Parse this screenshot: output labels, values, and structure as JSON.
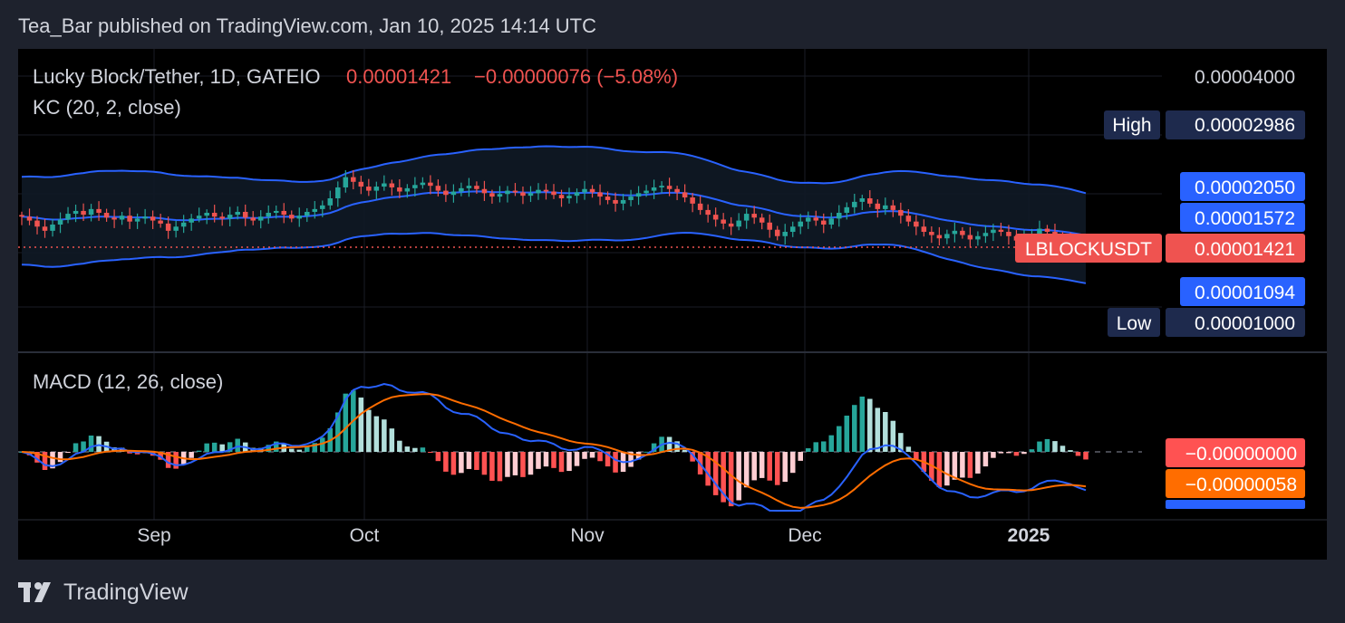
{
  "header": {
    "published": "Tea_Bar published on TradingView.com, Jan 10, 2025 14:14 UTC"
  },
  "footer": {
    "brand": "TradingView",
    "logo_icon": "tradingview-logo-icon"
  },
  "colors": {
    "background": "#000000",
    "frame": "#1e222d",
    "up": "#26a69a",
    "down": "#ef5350",
    "kc_band": "#2962ff",
    "macd_line": "#2962ff",
    "signal_line": "#ff6d00",
    "hist_up_strong": "#26a69a",
    "hist_up_weak": "#b2dfdb",
    "hist_down_strong": "#ff5252",
    "hist_down_weak": "#ffcdd2"
  },
  "price_pane": {
    "symbol_label": "Lucky Block/Tether, 1D, GATEIO",
    "last_price": "0.00001421",
    "change": "−0.00000076 (−5.08%)",
    "indicator_label": "KC (20, 2, close)",
    "axis_top_label": "0.00004000",
    "labels": {
      "high_tag": "High",
      "high_value": "0.00002986",
      "kc_upper": "0.00002050",
      "kc_basis": "0.00001572",
      "ticker_tag": "LBLOCKUSDT",
      "ticker_value": "0.00001421",
      "kc_lower": "0.00001094",
      "low_tag": "Low",
      "low_value": "0.00001000"
    }
  },
  "macd_pane": {
    "indicator_label": "MACD (12, 26, close)",
    "labels": {
      "histogram": "−0.00000000",
      "signal": "−0.00000058"
    }
  },
  "time_axis": {
    "labels": [
      "Sep",
      "Oct",
      "Nov",
      "Dec",
      "2025"
    ]
  },
  "chart_data": {
    "type": "candlestick",
    "title": "Lucky Block/Tether, 1D, GATEIO",
    "x_range": [
      "2024-08-15",
      "2025-01-10"
    ],
    "y_scale": "log",
    "y_axis_top": 4e-05,
    "last": 1.421e-05,
    "high": 2.986e-05,
    "low": 1e-05,
    "keltner": {
      "upper": 2.05e-05,
      "basis": 1.572e-05,
      "lower": 1.094e-05
    },
    "close_series": [
      1.72e-05,
      1.68e-05,
      1.62e-05,
      1.58e-05,
      1.64e-05,
      1.69e-05,
      1.75e-05,
      1.78e-05,
      1.74e-05,
      1.8e-05,
      1.76e-05,
      1.71e-05,
      1.69e-05,
      1.73e-05,
      1.67e-05,
      1.7e-05,
      1.72e-05,
      1.68e-05,
      1.65e-05,
      1.58e-05,
      1.62e-05,
      1.66e-05,
      1.7e-05,
      1.73e-05,
      1.76e-05,
      1.72e-05,
      1.7e-05,
      1.74e-05,
      1.77e-05,
      1.71e-05,
      1.68e-05,
      1.72e-05,
      1.76e-05,
      1.78e-05,
      1.74e-05,
      1.7e-05,
      1.73e-05,
      1.77e-05,
      1.8e-05,
      1.84e-05,
      1.92e-05,
      2.05e-05,
      2.18e-05,
      2.12e-05,
      2.06e-05,
      2.01e-05,
      2.06e-05,
      2.1e-05,
      2.05e-05,
      2e-05,
      2.04e-05,
      2.08e-05,
      2.11e-05,
      2.07e-05,
      2.01e-05,
      1.96e-05,
      2e-05,
      2.04e-05,
      2.07e-05,
      2.03e-05,
      1.98e-05,
      1.94e-05,
      1.97e-05,
      2.01e-05,
      1.99e-05,
      1.95e-05,
      1.98e-05,
      2.02e-05,
      2e-05,
      1.96e-05,
      1.92e-05,
      1.95e-05,
      1.99e-05,
      2.03e-05,
      1.99e-05,
      1.94e-05,
      1.9e-05,
      1.86e-05,
      1.9e-05,
      1.94e-05,
      1.98e-05,
      2.01e-05,
      2.05e-05,
      2.07e-05,
      2.03e-05,
      1.99e-05,
      1.93e-05,
      1.86e-05,
      1.79e-05,
      1.74e-05,
      1.69e-05,
      1.65e-05,
      1.62e-05,
      1.68e-05,
      1.75e-05,
      1.71e-05,
      1.66e-05,
      1.59e-05,
      1.53e-05,
      1.57e-05,
      1.62e-05,
      1.67e-05,
      1.71e-05,
      1.68e-05,
      1.64e-05,
      1.7e-05,
      1.76e-05,
      1.82e-05,
      1.88e-05,
      1.92e-05,
      1.86e-05,
      1.8e-05,
      1.84e-05,
      1.79e-05,
      1.73e-05,
      1.67e-05,
      1.62e-05,
      1.57e-05,
      1.54e-05,
      1.51e-05,
      1.55e-05,
      1.58e-05,
      1.54e-05,
      1.5e-05,
      1.53e-05,
      1.56e-05,
      1.59e-05,
      1.57e-05,
      1.53e-05,
      1.49e-05,
      1.52e-05,
      1.55e-05,
      1.6e-05,
      1.57e-05,
      1.53e-05,
      1.49e-05,
      1.47e-05,
      1.43e-05,
      1.42e-05
    ]
  }
}
